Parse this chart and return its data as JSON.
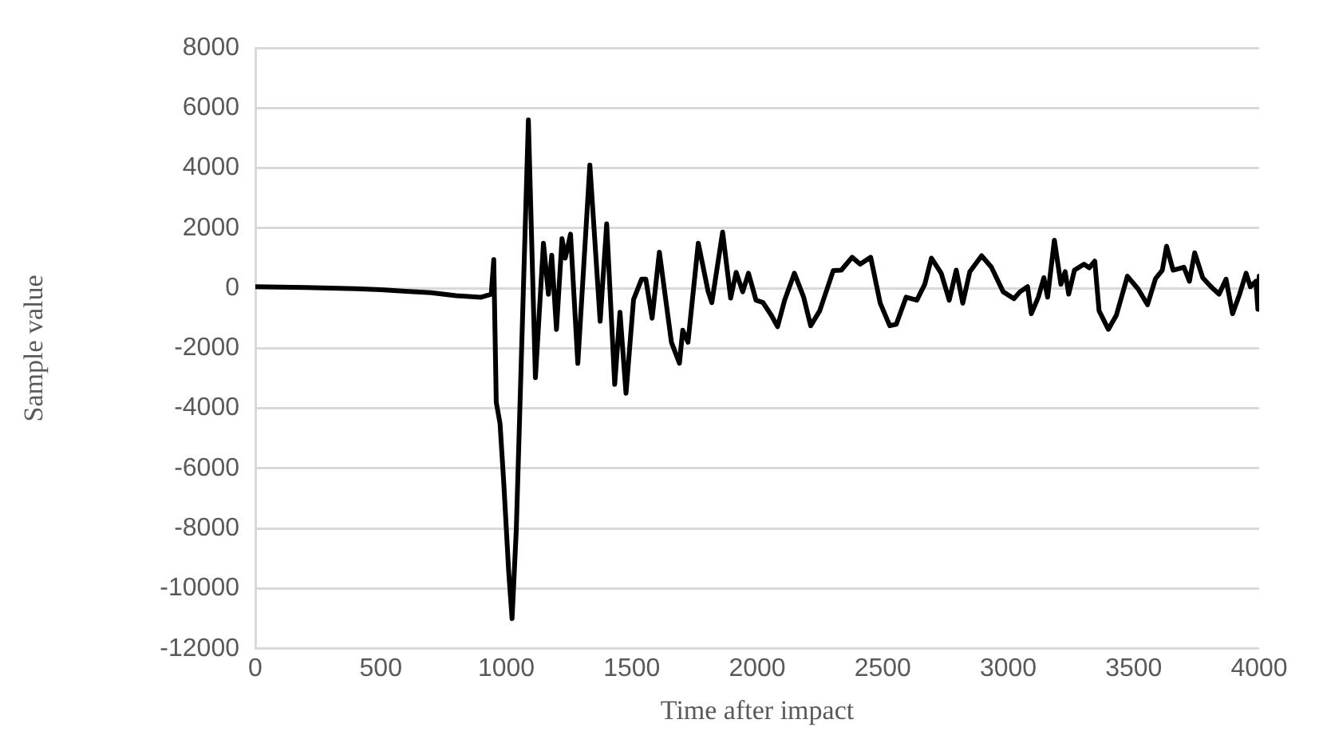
{
  "chart_data": {
    "type": "line",
    "xlabel": "Time after impact",
    "ylabel": "Sample value",
    "x": [
      0,
      200,
      400,
      500,
      600,
      700,
      800,
      900,
      940,
      950,
      960,
      975,
      990,
      1010,
      1023,
      1040,
      1088,
      1116,
      1148,
      1168,
      1181,
      1200,
      1222,
      1235,
      1256,
      1285,
      1333,
      1374,
      1400,
      1432,
      1453,
      1477,
      1507,
      1539,
      1556,
      1581,
      1610,
      1658,
      1690,
      1703,
      1724,
      1765,
      1804,
      1819,
      1862,
      1894,
      1916,
      1942,
      1965,
      1995,
      2023,
      2056,
      2081,
      2109,
      2148,
      2185,
      2213,
      2249,
      2303,
      2335,
      2378,
      2410,
      2452,
      2490,
      2528,
      2554,
      2593,
      2636,
      2668,
      2694,
      2733,
      2765,
      2793,
      2819,
      2847,
      2894,
      2933,
      2980,
      3023,
      3047,
      3077,
      3092,
      3120,
      3142,
      3157,
      3184,
      3210,
      3227,
      3241,
      3264,
      3302,
      3323,
      3345,
      3362,
      3399,
      3431,
      3475,
      3518,
      3555,
      3587,
      3614,
      3631,
      3657,
      3700,
      3722,
      3743,
      3775,
      3808,
      3840,
      3868,
      3894,
      3922,
      3948,
      3965,
      3987,
      3995,
      4000
    ],
    "series": [
      {
        "color": "#000000",
        "values": [
          50,
          20,
          -20,
          -50,
          -100,
          -150,
          -250,
          -300,
          -200,
          950,
          -3800,
          -4500,
          -6500,
          -9500,
          -11000,
          -8000,
          5600,
          -2980,
          1500,
          -200,
          1100,
          -1370,
          1650,
          1000,
          1800,
          -2500,
          4100,
          -1100,
          2140,
          -3200,
          -800,
          -3500,
          -380,
          300,
          300,
          -1000,
          1200,
          -1800,
          -2500,
          -1400,
          -1800,
          1500,
          -100,
          -480,
          1870,
          -330,
          530,
          -120,
          500,
          -400,
          -480,
          -900,
          -1280,
          -400,
          500,
          -300,
          -1250,
          -750,
          590,
          600,
          1030,
          800,
          1030,
          -500,
          -1250,
          -1200,
          -300,
          -400,
          140,
          1000,
          500,
          -400,
          600,
          -500,
          550,
          1080,
          700,
          -120,
          -350,
          -120,
          50,
          -850,
          -300,
          350,
          -300,
          1600,
          130,
          550,
          -200,
          600,
          800,
          680,
          900,
          -750,
          -1370,
          -900,
          400,
          -30,
          -550,
          320,
          600,
          1400,
          600,
          700,
          230,
          1180,
          350,
          50,
          -200,
          300,
          -850,
          -200,
          500,
          50,
          230,
          -700,
          400
        ]
      }
    ],
    "xlim": [
      0,
      4000
    ],
    "xticks": [
      0,
      500,
      1000,
      1500,
      2000,
      2500,
      3000,
      3500,
      4000
    ],
    "ylim": [
      -12000,
      8000
    ],
    "yticks": [
      -12000,
      -10000,
      -8000,
      -6000,
      -4000,
      -2000,
      0,
      2000,
      4000,
      6000,
      8000
    ],
    "grid": "y",
    "legend": false,
    "marker": "none",
    "line_style": "solid"
  }
}
